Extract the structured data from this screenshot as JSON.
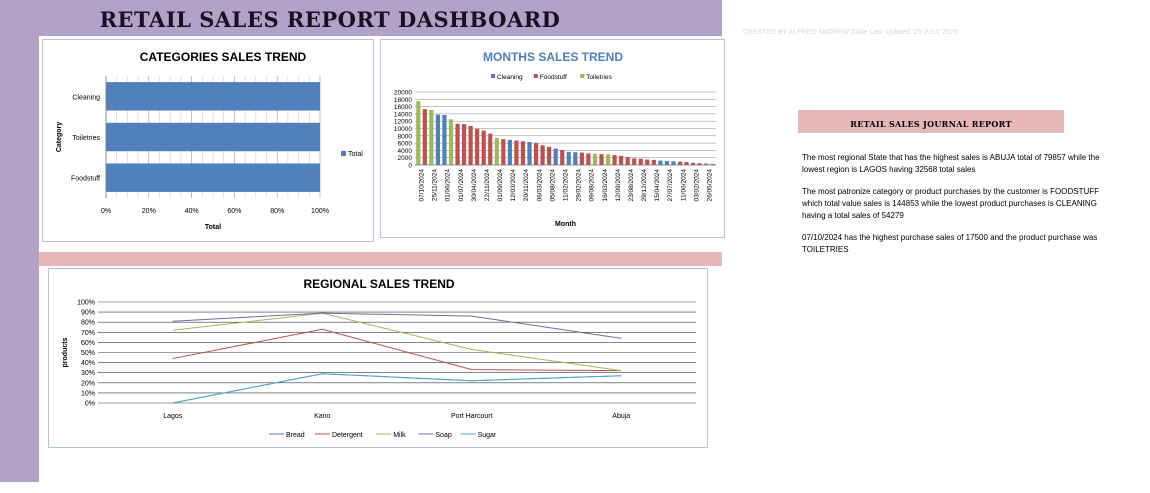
{
  "dashboard": {
    "title": "RETAIL SALES REPORT DASHBOARD",
    "credit": "CREATED BY ALFRED ANDREW |Date Last updated:  25 JULY 2025"
  },
  "colors": {
    "frame_purple": "#b3a2c7",
    "band_pink": "#e6b9b8",
    "bar_blue": "#4f81bd",
    "red": "#c0504d",
    "green": "#9bbb59",
    "purple": "#8064a2",
    "teal": "#4bacc6"
  },
  "journal": {
    "title": "RETAIL SALES JOURNAL REPORT",
    "paragraphs": [
      "The most regional State that has the highest sales is ABUJA total of 79857 while the lowest region is  LAGOS  having 32568 total sales",
      "The most patronize category or product purchases by the customer is FOODSTUFF which total value sales is 144853 while the lowest product purchases is CLEANING having a total sales of 54279",
      "07/10/2024 has the highest purchase sales of 17500 and the product purchase was TOILETRIES"
    ]
  },
  "chart_data": [
    {
      "type": "bar",
      "orientation": "horizontal",
      "title": "CATEGORIES  SALES TREND",
      "categories": [
        "Cleaning",
        "Toiletries",
        "Foodstuff"
      ],
      "series": [
        {
          "name": "Total",
          "values": [
            100,
            100,
            100
          ],
          "color": "#4f81bd"
        }
      ],
      "xlabel": "Total",
      "ylabel": "Category",
      "xlim": [
        0,
        100
      ],
      "x_ticks": [
        "0%",
        "20%",
        "40%",
        "60%",
        "80%",
        "100%"
      ],
      "legend": "right",
      "grid": true
    },
    {
      "type": "bar",
      "title": "MONTHS SALES TREND",
      "xlabel": "Month",
      "ylabel": "",
      "ylim": [
        0,
        20000
      ],
      "y_ticks": [
        "0",
        "2000",
        "4000",
        "6000",
        "8000",
        "10000",
        "12000",
        "14000",
        "16000",
        "18000",
        "20000"
      ],
      "legend": "top",
      "grid": true,
      "series_names": [
        "Cleaning",
        "Foodstuff",
        "Toiletries"
      ],
      "series_colors": [
        "#4f81bd",
        "#c0504d",
        "#9bbb59"
      ],
      "tick_labels": [
        "07/10/2024",
        "25/11/2024",
        "01/06/2024",
        "01/07/2024",
        "30/04/2024",
        "22/11/2024",
        "01/09/2024",
        "12/03/2024",
        "20/11/2024",
        "06/03/2024",
        "05/08/2024",
        "11/02/2024",
        "29/02/2024",
        "09/08/2024",
        "16/03/2024",
        "12/09/2024",
        "23/08/2024",
        "29/12/2024",
        "15/04/2024",
        "27/07/2024",
        "11/06/2024",
        "03/02/2024",
        "26/05/2024"
      ],
      "bars": [
        {
          "series": "Toiletries",
          "value": 17500
        },
        {
          "series": "Foodstuff",
          "value": 15300
        },
        {
          "series": "Toiletries",
          "value": 15100
        },
        {
          "series": "Cleaning",
          "value": 13800
        },
        {
          "series": "Cleaning",
          "value": 13700
        },
        {
          "series": "Toiletries",
          "value": 12500
        },
        {
          "series": "Foodstuff",
          "value": 11300
        },
        {
          "series": "Foodstuff",
          "value": 11200
        },
        {
          "series": "Foodstuff",
          "value": 10700
        },
        {
          "series": "Foodstuff",
          "value": 9900
        },
        {
          "series": "Foodstuff",
          "value": 9400
        },
        {
          "series": "Foodstuff",
          "value": 8600
        },
        {
          "series": "Toiletries",
          "value": 7400
        },
        {
          "series": "Foodstuff",
          "value": 7100
        },
        {
          "series": "Cleaning",
          "value": 6900
        },
        {
          "series": "Foodstuff",
          "value": 6700
        },
        {
          "series": "Foodstuff",
          "value": 6500
        },
        {
          "series": "Cleaning",
          "value": 6300
        },
        {
          "series": "Foodstuff",
          "value": 6000
        },
        {
          "series": "Foodstuff",
          "value": 5400
        },
        {
          "series": "Foodstuff",
          "value": 5000
        },
        {
          "series": "Cleaning",
          "value": 4500
        },
        {
          "series": "Foodstuff",
          "value": 4100
        },
        {
          "series": "Cleaning",
          "value": 3600
        },
        {
          "series": "Cleaning",
          "value": 3500
        },
        {
          "series": "Foodstuff",
          "value": 3400
        },
        {
          "series": "Foodstuff",
          "value": 3200
        },
        {
          "series": "Toiletries",
          "value": 3100
        },
        {
          "series": "Foodstuff",
          "value": 3000
        },
        {
          "series": "Toiletries",
          "value": 2900
        },
        {
          "series": "Foodstuff",
          "value": 2700
        },
        {
          "series": "Foodstuff",
          "value": 2500
        },
        {
          "series": "Foodstuff",
          "value": 2200
        },
        {
          "series": "Foodstuff",
          "value": 1800
        },
        {
          "series": "Foodstuff",
          "value": 1700
        },
        {
          "series": "Foodstuff",
          "value": 1500
        },
        {
          "series": "Foodstuff",
          "value": 1400
        },
        {
          "series": "Cleaning",
          "value": 1200
        },
        {
          "series": "Cleaning",
          "value": 1100
        },
        {
          "series": "Cleaning",
          "value": 1000
        },
        {
          "series": "Foodstuff",
          "value": 900
        },
        {
          "series": "Foodstuff",
          "value": 800
        },
        {
          "series": "Foodstuff",
          "value": 600
        },
        {
          "series": "Foodstuff",
          "value": 500
        },
        {
          "series": "Cleaning",
          "value": 400
        },
        {
          "series": "Foodstuff",
          "value": 300
        }
      ]
    },
    {
      "type": "line",
      "title": "REGIONAL SALES TREND",
      "categories": [
        "Lagos",
        "Kano",
        "Port Harcourt",
        "Abuja"
      ],
      "ylabel": "products",
      "xlabel": "",
      "ylim": [
        0,
        100
      ],
      "y_ticks": [
        "0%",
        "10%",
        "20%",
        "30%",
        "40%",
        "50%",
        "60%",
        "70%",
        "80%",
        "90%",
        "100%"
      ],
      "legend": "bottom",
      "grid": true,
      "series": [
        {
          "name": "Bread",
          "values": [
            0,
            29,
            22,
            27
          ],
          "color": "#4f81bd"
        },
        {
          "name": "Detergent",
          "values": [
            44,
            73,
            33,
            32
          ],
          "color": "#c0504d"
        },
        {
          "name": "Milk",
          "values": [
            72,
            89,
            53,
            32
          ],
          "color": "#9bbb59"
        },
        {
          "name": "Soap",
          "values": [
            81,
            89,
            86,
            64
          ],
          "color": "#8064a2"
        },
        {
          "name": "Sugar",
          "values": [
            0,
            29,
            22,
            27
          ],
          "color": "#4bacc6"
        }
      ]
    }
  ]
}
